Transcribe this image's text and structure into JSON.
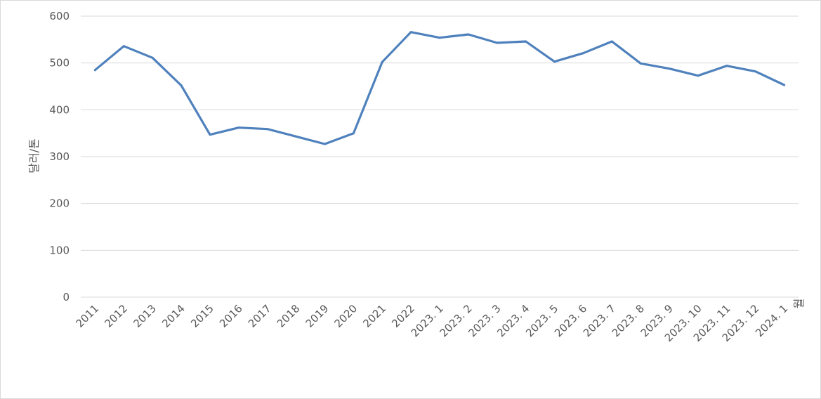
{
  "chart_data": {
    "type": "line",
    "title": "",
    "xlabel": "",
    "ylabel": "달러/톤",
    "unit_label": "월",
    "ylim": [
      0,
      600
    ],
    "yticks": [
      0,
      100,
      200,
      300,
      400,
      500,
      600
    ],
    "grid": true,
    "legend": "none",
    "categories": [
      "2011",
      "2012",
      "2013",
      "2014",
      "2015",
      "2016",
      "2017",
      "2018",
      "2019",
      "2020",
      "2021",
      "2022",
      "2023. 1",
      "2023. 2",
      "2023. 3",
      "2023. 4",
      "2023. 5",
      "2023. 6",
      "2023. 7",
      "2023. 8",
      "2023. 9",
      "2023. 10",
      "2023. 11",
      "2023. 12",
      "2024. 1"
    ],
    "series": [
      {
        "color": "#4f81bd",
        "values": [
          485,
          536,
          511,
          452,
          347,
          362,
          359,
          343,
          327,
          350,
          502,
          566,
          554,
          561,
          543,
          546,
          503,
          521,
          546,
          499,
          488,
          473,
          494,
          482,
          453
        ]
      }
    ]
  }
}
